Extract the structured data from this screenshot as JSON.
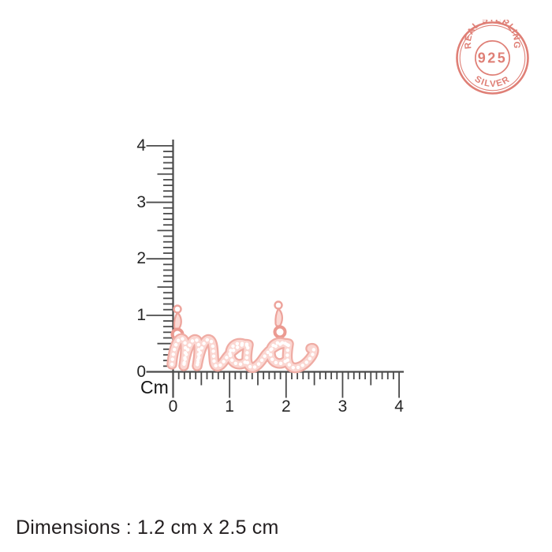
{
  "badge": {
    "top_text": "REAL STERLING",
    "center_text": "925",
    "bottom_text": "SILVER",
    "color": "#dc7268"
  },
  "ruler": {
    "unit_label": "Cm",
    "vertical_labels": [
      "0",
      "1",
      "2",
      "3",
      "4"
    ],
    "horizontal_labels": [
      "0",
      "1",
      "2",
      "3",
      "4"
    ],
    "line_color": "#4a4a4a"
  },
  "pendant": {
    "word": "maa",
    "metal_color": "#efaca4",
    "stone_color": "#ffffff"
  },
  "footer": {
    "dimensions_text": "Dimensions : 1.2 cm x 2.5 cm"
  }
}
